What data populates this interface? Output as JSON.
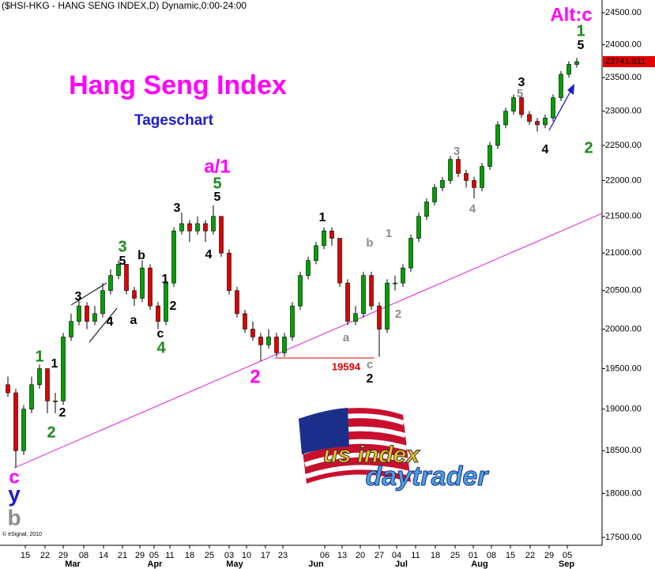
{
  "chart_data": {
    "type": "candlestick",
    "header": "($HSI-HKG - HANG SENG INDEX,D) Dynamic,0:00-24:00",
    "title": "Hang Seng Index",
    "subtitle": "Tageschart",
    "footer": "© eSignal, 2010",
    "up_color": "#00a000",
    "down_color": "#e00000",
    "log_scale": true,
    "ylim": [
      17500,
      24500
    ],
    "yticks": [
      {
        "value": 24500,
        "label": "24500.00"
      },
      {
        "value": 24000,
        "label": "24000.00"
      },
      {
        "value": 23500,
        "label": "23500.00"
      },
      {
        "value": 23000,
        "label": "23000.00"
      },
      {
        "value": 22500,
        "label": "22500.00"
      },
      {
        "value": 22000,
        "label": "22000.00"
      },
      {
        "value": 21500,
        "label": "21500.00"
      },
      {
        "value": 21000,
        "label": "21000.00"
      },
      {
        "value": 20500,
        "label": "20500.00"
      },
      {
        "value": 20000,
        "label": "20000.00"
      },
      {
        "value": 19500,
        "label": "19500.00"
      },
      {
        "value": 19000,
        "label": "19000.00"
      },
      {
        "value": 18500,
        "label": "18500.00"
      },
      {
        "value": 18000,
        "label": "18000.00"
      },
      {
        "value": 17500,
        "label": "17500.00"
      }
    ],
    "xlim": [
      -1,
      75
    ],
    "xticks": [
      {
        "value": 2.2,
        "label": "15"
      },
      {
        "value": 4.7,
        "label": "22"
      },
      {
        "value": 7.0,
        "label": "29"
      },
      {
        "value": 9.6,
        "label": "08"
      },
      {
        "value": 12.1,
        "label": "14"
      },
      {
        "value": 14.5,
        "label": "21"
      },
      {
        "value": 16.7,
        "label": "29"
      },
      {
        "value": 18.5,
        "label": "05"
      },
      {
        "value": 20.5,
        "label": "11"
      },
      {
        "value": 23.0,
        "label": "18"
      },
      {
        "value": 25.5,
        "label": "25"
      },
      {
        "value": 28.0,
        "label": "03"
      },
      {
        "value": 30.2,
        "label": "10"
      },
      {
        "value": 32.6,
        "label": "17"
      },
      {
        "value": 34.8,
        "label": "23"
      },
      {
        "value": 40.1,
        "label": "06"
      },
      {
        "value": 42.3,
        "label": "13"
      },
      {
        "value": 44.6,
        "label": "20"
      },
      {
        "value": 47.0,
        "label": "27"
      },
      {
        "value": 49.2,
        "label": "04"
      },
      {
        "value": 51.6,
        "label": "11"
      },
      {
        "value": 54.1,
        "label": "18"
      },
      {
        "value": 56.6,
        "label": "25"
      },
      {
        "value": 58.9,
        "label": "01"
      },
      {
        "value": 61.2,
        "label": "08"
      },
      {
        "value": 63.6,
        "label": "15"
      },
      {
        "value": 66.1,
        "label": "22"
      },
      {
        "value": 68.5,
        "label": "29"
      },
      {
        "value": 70.8,
        "label": "05"
      }
    ],
    "month_labels": [
      {
        "value": 8.2,
        "label": "Mar"
      },
      {
        "value": 18.6,
        "label": "Apr"
      },
      {
        "value": 28.7,
        "label": "May"
      },
      {
        "value": 39.0,
        "label": "Jun"
      },
      {
        "value": 49.8,
        "label": "Jul"
      },
      {
        "value": 59.7,
        "label": "Aug"
      },
      {
        "value": 70.7,
        "label": "Sep"
      }
    ],
    "ohlc": [
      [
        19300,
        19400,
        19150,
        19200
      ],
      [
        19200,
        19250,
        18300,
        18500
      ],
      [
        18500,
        19050,
        18450,
        19000
      ],
      [
        19000,
        19400,
        18950,
        19300
      ],
      [
        19300,
        19550,
        19250,
        19500
      ],
      [
        19500,
        19500,
        18950,
        19100
      ],
      [
        19100,
        19200,
        18950,
        19100
      ],
      [
        19100,
        19950,
        19050,
        19900
      ],
      [
        19900,
        20200,
        19850,
        20100
      ],
      [
        20100,
        20400,
        20050,
        20300
      ],
      [
        20300,
        20350,
        20000,
        20100
      ],
      [
        20100,
        20300,
        20050,
        20200
      ],
      [
        20200,
        20600,
        20150,
        20500
      ],
      [
        20500,
        20780,
        20450,
        20700
      ],
      [
        20700,
        20900,
        20650,
        20850
      ],
      [
        20850,
        20850,
        20450,
        20500
      ],
      [
        20500,
        20550,
        20300,
        20400
      ],
      [
        20400,
        20900,
        20350,
        20800
      ],
      [
        20800,
        20850,
        20250,
        20300
      ],
      [
        20300,
        20350,
        20000,
        20100
      ],
      [
        20100,
        20650,
        20050,
        20600
      ],
      [
        20600,
        21350,
        20550,
        21300
      ],
      [
        21300,
        21550,
        21250,
        21400
      ],
      [
        21400,
        21450,
        21150,
        21300
      ],
      [
        21300,
        21500,
        21250,
        21400
      ],
      [
        21400,
        21450,
        21150,
        21300
      ],
      [
        21300,
        21650,
        21250,
        21500
      ],
      [
        21500,
        21500,
        20950,
        21000
      ],
      [
        21000,
        21050,
        20450,
        20500
      ],
      [
        20500,
        20550,
        20150,
        20200
      ],
      [
        20200,
        20250,
        19950,
        20000
      ],
      [
        20000,
        20100,
        19850,
        19900
      ],
      [
        19900,
        19950,
        19594,
        19800
      ],
      [
        19800,
        20000,
        19750,
        19900
      ],
      [
        19900,
        19950,
        19650,
        19700
      ],
      [
        19700,
        19950,
        19650,
        19900
      ],
      [
        19900,
        20350,
        19850,
        20300
      ],
      [
        20300,
        20750,
        20250,
        20700
      ],
      [
        20700,
        20950,
        20650,
        20900
      ],
      [
        20900,
        21150,
        20850,
        21100
      ],
      [
        21100,
        21350,
        21050,
        21300
      ],
      [
        21300,
        21350,
        21100,
        21200
      ],
      [
        21200,
        21200,
        20550,
        20600
      ],
      [
        20600,
        20650,
        20050,
        20100
      ],
      [
        20100,
        20300,
        20050,
        20200
      ],
      [
        20200,
        20750,
        20150,
        20700
      ],
      [
        20700,
        20750,
        20250,
        20300
      ],
      [
        20300,
        20350,
        19650,
        20000
      ],
      [
        20000,
        20650,
        19950,
        20600
      ],
      [
        20600,
        20700,
        20500,
        20600
      ],
      [
        20600,
        20850,
        20550,
        20800
      ],
      [
        20800,
        21250,
        20750,
        21200
      ],
      [
        21200,
        21550,
        21150,
        21500
      ],
      [
        21500,
        21750,
        21450,
        21700
      ],
      [
        21700,
        21950,
        21650,
        21900
      ],
      [
        21900,
        22050,
        21850,
        22000
      ],
      [
        22000,
        22350,
        21950,
        22300
      ],
      [
        22300,
        22350,
        22050,
        22100
      ],
      [
        22100,
        22150,
        21900,
        22000
      ],
      [
        22000,
        22050,
        21750,
        21900
      ],
      [
        21900,
        22250,
        21850,
        22200
      ],
      [
        22200,
        22550,
        22150,
        22500
      ],
      [
        22500,
        22850,
        22450,
        22800
      ],
      [
        22800,
        23050,
        22750,
        23000
      ],
      [
        23000,
        23250,
        22950,
        23200
      ],
      [
        23200,
        23250,
        22900,
        22950
      ],
      [
        22950,
        23000,
        22800,
        22850
      ],
      [
        22850,
        22900,
        22700,
        22800
      ],
      [
        22800,
        22950,
        22750,
        22900
      ],
      [
        22900,
        23250,
        22850,
        23200
      ],
      [
        23200,
        23600,
        23150,
        23550
      ],
      [
        23550,
        23750,
        23500,
        23700
      ],
      [
        23700,
        23800,
        23650,
        23741.811
      ]
    ],
    "annotations": [
      "Alt:c",
      "1",
      "5",
      "3",
      "5",
      "4",
      "2",
      "3",
      "4",
      "1",
      "1",
      "b",
      "2",
      "a",
      "c",
      "2",
      "19594",
      "2",
      "a/1",
      "5",
      "5",
      "4",
      "3",
      "3",
      "5",
      "b",
      "1",
      "2",
      "c",
      "4",
      "3",
      "4",
      "a",
      "1",
      "1",
      "2",
      "2",
      "c",
      "y",
      "b"
    ]
  },
  "logo": {
    "line1": "us index",
    "line2": "daytrader"
  }
}
